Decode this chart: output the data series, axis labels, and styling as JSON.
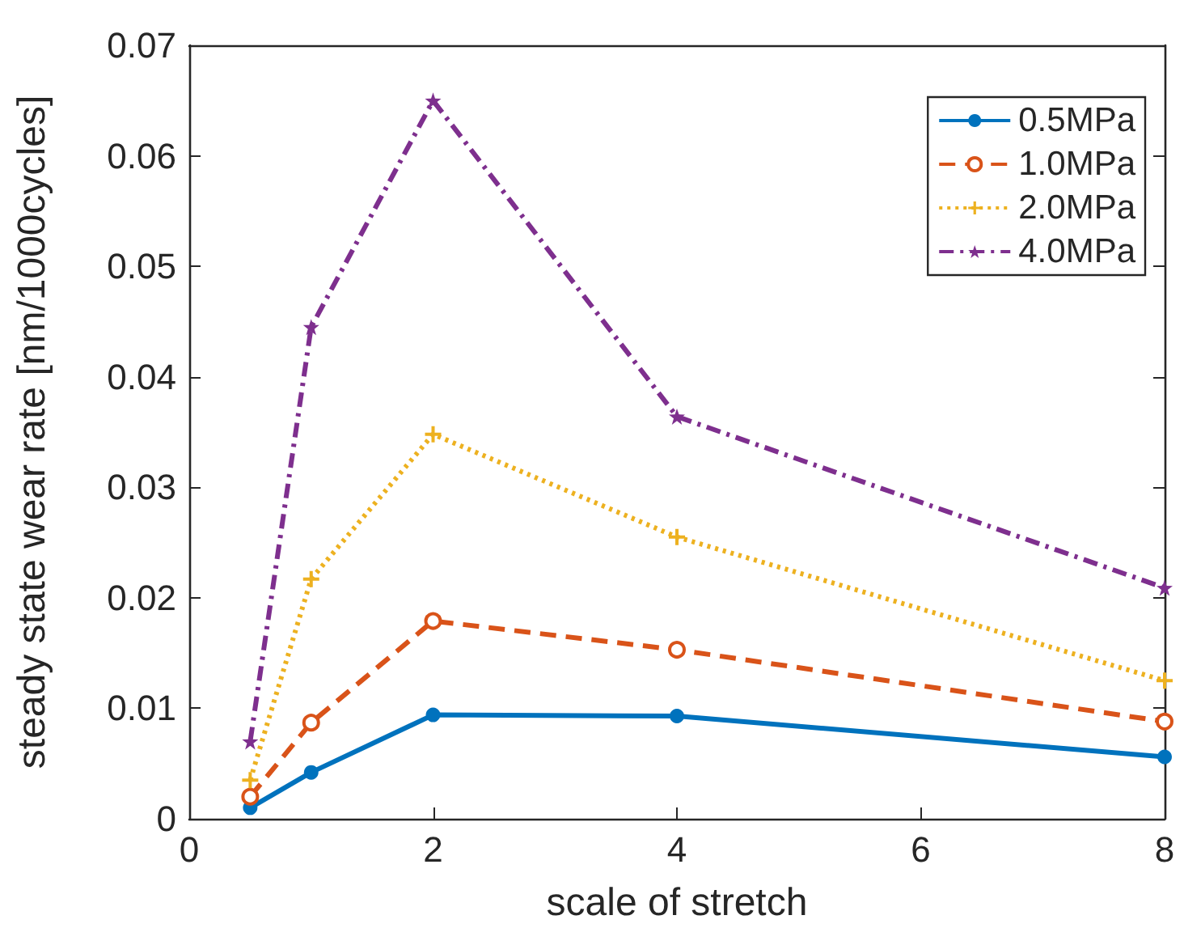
{
  "chart_data": {
    "type": "line",
    "xlabel": "scale of stretch",
    "ylabel": "steady state wear rate [nm/1000cycles]",
    "x": [
      0.5,
      1,
      2,
      4,
      8
    ],
    "series": [
      {
        "name": "0.5MPa",
        "color": "#0072bd",
        "marker": "circle",
        "line_style": "solid",
        "values": [
          0.001,
          0.0042,
          0.0094,
          0.0093,
          0.0056
        ]
      },
      {
        "name": "1.0MPa",
        "color": "#d95319",
        "marker": "circle-open",
        "line_style": "dashed",
        "values": [
          0.002,
          0.0087,
          0.0179,
          0.0153,
          0.0088
        ]
      },
      {
        "name": "2.0MPa",
        "color": "#edb120",
        "marker": "cross",
        "line_style": "dotted",
        "values": [
          0.0035,
          0.0217,
          0.0348,
          0.0255,
          0.0125
        ]
      },
      {
        "name": "4.0MPa",
        "color": "#7e2f8e",
        "marker": "star",
        "line_style": "dashdot",
        "values": [
          0.007,
          0.0445,
          0.065,
          0.0364,
          0.0209
        ]
      }
    ],
    "xlim": [
      0,
      8
    ],
    "xticks": [
      0,
      2,
      4,
      6,
      8
    ],
    "ylim": [
      0,
      0.07
    ],
    "yticks": [
      0,
      0.01,
      0.02,
      0.03,
      0.04,
      0.05,
      0.06,
      0.07
    ],
    "grid": false,
    "legend": "top right"
  }
}
